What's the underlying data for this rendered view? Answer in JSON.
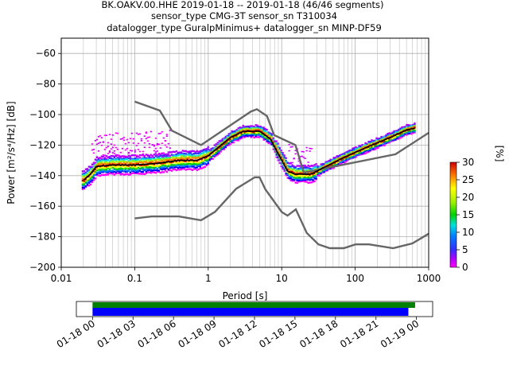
{
  "chart_data": {
    "type": "heatmap",
    "title_lines": [
      "BK.OAKV.00.HHE   2019-01-18 -- 2019-01-18  (46/46 segments)",
      "sensor_type CMG-3T sensor_sn T310034",
      "datalogger_type GuralpMinimus+ datalogger_sn MINP-DF59"
    ],
    "xlabel": "Period [s]",
    "ylabel": "Power [m²/s⁴/Hz] [dB]",
    "xscale": "log",
    "xlim": [
      0.01,
      1000
    ],
    "ylim": [
      -200,
      -50
    ],
    "x_ticks": [
      0.01,
      0.1,
      1,
      10,
      100,
      1000
    ],
    "x_tick_labels": [
      "0.01",
      "0.1",
      "1",
      "10",
      "100",
      "1000"
    ],
    "y_ticks": [
      -200,
      -180,
      -160,
      -140,
      -120,
      -100,
      -80,
      -60
    ],
    "y_tick_labels": [
      "−200",
      "−180",
      "−160",
      "−140",
      "−120",
      "−100",
      "−80",
      "−60"
    ],
    "grid": true,
    "colorbar": {
      "label": "[%]",
      "range": [
        0,
        30
      ],
      "ticks": [
        "0",
        "5",
        "10",
        "15",
        "20",
        "25",
        "30"
      ]
    },
    "noise_models": [
      {
        "name": "high",
        "points": [
          [
            0.1,
            -91.5
          ],
          [
            0.22,
            -97.4
          ],
          [
            0.32,
            -110.5
          ],
          [
            0.8,
            -120
          ],
          [
            3.8,
            -98
          ],
          [
            4.6,
            -96.5
          ],
          [
            6.3,
            -101
          ],
          [
            7.9,
            -113.5
          ],
          [
            15.4,
            -120
          ],
          [
            20,
            -138
          ],
          [
            354,
            -126
          ],
          [
            1000,
            -112
          ]
        ]
      },
      {
        "name": "low",
        "points": [
          [
            0.1,
            -168
          ],
          [
            0.17,
            -166.7
          ],
          [
            0.4,
            -166.7
          ],
          [
            0.8,
            -169.2
          ],
          [
            1.24,
            -163.7
          ],
          [
            2.4,
            -148.6
          ],
          [
            4.3,
            -141.1
          ],
          [
            5,
            -141.1
          ],
          [
            6,
            -149
          ],
          [
            10,
            -163.8
          ],
          [
            12,
            -166.2
          ],
          [
            15.6,
            -162.1
          ],
          [
            21.9,
            -177.5
          ],
          [
            31.6,
            -185
          ],
          [
            45,
            -187.5
          ],
          [
            70,
            -187.5
          ],
          [
            101,
            -185
          ],
          [
            154,
            -185
          ],
          [
            328,
            -187.5
          ],
          [
            600,
            -184.4
          ],
          [
            1000,
            -178
          ]
        ]
      }
    ],
    "mean_curve": [
      [
        0.02,
        -143
      ],
      [
        0.025,
        -139
      ],
      [
        0.03,
        -134
      ],
      [
        0.05,
        -133
      ],
      [
        0.1,
        -133
      ],
      [
        0.2,
        -132
      ],
      [
        0.4,
        -130
      ],
      [
        0.7,
        -130
      ],
      [
        1,
        -127
      ],
      [
        2,
        -115
      ],
      [
        3,
        -111
      ],
      [
        5,
        -111
      ],
      [
        7,
        -116
      ],
      [
        9,
        -126
      ],
      [
        12,
        -137
      ],
      [
        15,
        -139
      ],
      [
        25,
        -139
      ],
      [
        40,
        -134
      ],
      [
        70,
        -128
      ],
      [
        150,
        -121
      ],
      [
        300,
        -115
      ],
      [
        500,
        -110
      ],
      [
        650,
        -109
      ]
    ],
    "time_axis": {
      "tick_labels": [
        "01-18 00",
        "01-18 03",
        "01-18 06",
        "01-18 09",
        "01-18 12",
        "01-18 15",
        "01-18 18",
        "01-18 21",
        "01-19 00"
      ],
      "tick_hours": [
        0,
        3,
        6,
        9,
        12,
        15,
        18,
        21,
        24
      ],
      "range_hours": [
        -1.2,
        25.2
      ],
      "data_available_hours": [
        0,
        23.9
      ],
      "segments_used_hours": [
        0,
        23.4
      ]
    },
    "colors": {
      "noise_model": "#666666",
      "mean_curve": "#000000",
      "data_bar": "#008000",
      "segment_bar": "#0000ff"
    }
  }
}
